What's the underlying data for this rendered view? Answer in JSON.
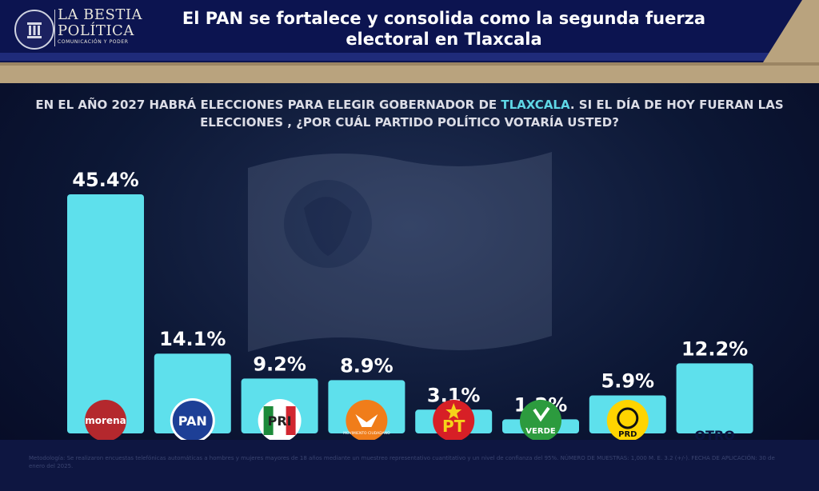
{
  "header": {
    "brand_line1": "LA BESTIA",
    "brand_line2": "POLÍTICA",
    "brand_line3": "COMUNICACIÓN Y PODER",
    "headline": "El PAN se fortalece y consolida como la segunda fuerza electoral en Tlaxcala"
  },
  "question": {
    "part1": "EN EL AÑO 2027 HABRÁ ELECCIONES PARA ELEGIR GOBERNADOR DE ",
    "highlight": "TLAXCALA",
    "part2": ".  SI EL DÍA DE HOY FUERAN LAS ELECCIONES , ¿POR CUÁL PARTIDO POLÍTICO VOTARÍA USTED?"
  },
  "footnote": "Metodología: Se realizaron encuestas telefónicas automáticas a hombres y mujeres mayores de 18 años mediante un muestreo representativo cuantitativo y un nivel de confianza del 95%. NÚMERO DE MUESTRAS: 1,000 M. E. 3.2 (+/-). FECHA DE APLICACIÓN: 30 de enero del 2025.",
  "colors": {
    "bar": "#5ee0ec",
    "header_bg": "#0c1450",
    "tan": "#b9a37e",
    "highlight": "#5fd7e6"
  },
  "chart_data": {
    "type": "bar",
    "categories": [
      "morena",
      "PAN",
      "PRI",
      "MOVIMIENTO CIUDADANO",
      "PT",
      "VERDE",
      "PRD",
      "OTRO"
    ],
    "values": [
      45.4,
      14.1,
      9.2,
      8.9,
      3.1,
      1.2,
      5.9,
      12.2
    ],
    "value_labels": [
      "45.4%",
      "14.1%",
      "9.2%",
      "8.9%",
      "3.1%",
      "1.2%",
      "5.9%",
      "12.2%"
    ],
    "logo_labels": [
      "morena",
      "PAN",
      "PRI",
      "MOVIMIENTO CIUDADANO",
      "PT",
      "VERDE",
      "PRD",
      "OTRO"
    ],
    "logo_icons": [
      "morena-logo",
      "pan-logo",
      "pri-logo",
      "movimiento-ciudadano-logo",
      "pt-logo",
      "verde-logo",
      "prd-logo",
      ""
    ],
    "title": "",
    "xlabel": "",
    "ylabel": "",
    "ylim": [
      0,
      50
    ],
    "grid": false
  }
}
